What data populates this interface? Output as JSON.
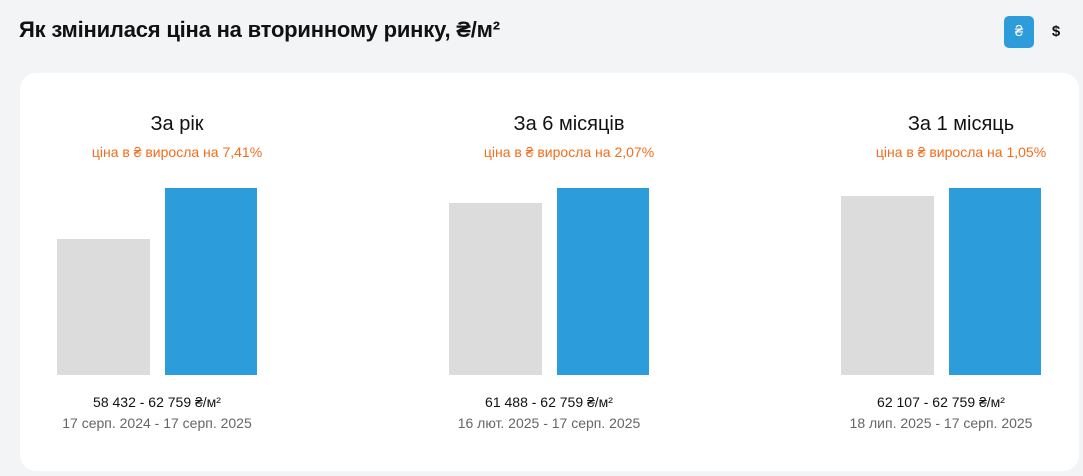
{
  "header": {
    "title": "Як змінилася ціна на вторинному ринку, ₴/м²",
    "currency_uah": "₴",
    "currency_usd": "$"
  },
  "colors": {
    "accent": "#2d9cdb",
    "previous_bar": "#dcdcdc",
    "change_text": "#f26d1b"
  },
  "chart_data": [
    {
      "type": "bar",
      "title": "За рік",
      "subtitle": "ціна в ₴ виросла на 7,41%",
      "categories": [
        "17 серп. 2024",
        "17 серп. 2025"
      ],
      "values": [
        58432,
        62759
      ],
      "range_label": "58 432 - 62 759 ₴/м²",
      "dates_label": "17 серп. 2024 - 17 серп. 2025"
    },
    {
      "type": "bar",
      "title": "За 6 місяців",
      "subtitle": "ціна в ₴ виросла на 2,07%",
      "categories": [
        "16 лют. 2025",
        "17 серп. 2025"
      ],
      "values": [
        61488,
        62759
      ],
      "range_label": "61 488 - 62 759 ₴/м²",
      "dates_label": "16 лют. 2025 - 17 серп. 2025"
    },
    {
      "type": "bar",
      "title": "За 1 місяць",
      "subtitle": "ціна в ₴ виросла на 1,05%",
      "categories": [
        "18 лип. 2025",
        "17 серп. 2025"
      ],
      "values": [
        62107,
        62759
      ],
      "range_label": "62 107 - 62 759 ₴/м²",
      "dates_label": "18 лип. 2025 - 17 серп. 2025"
    }
  ]
}
